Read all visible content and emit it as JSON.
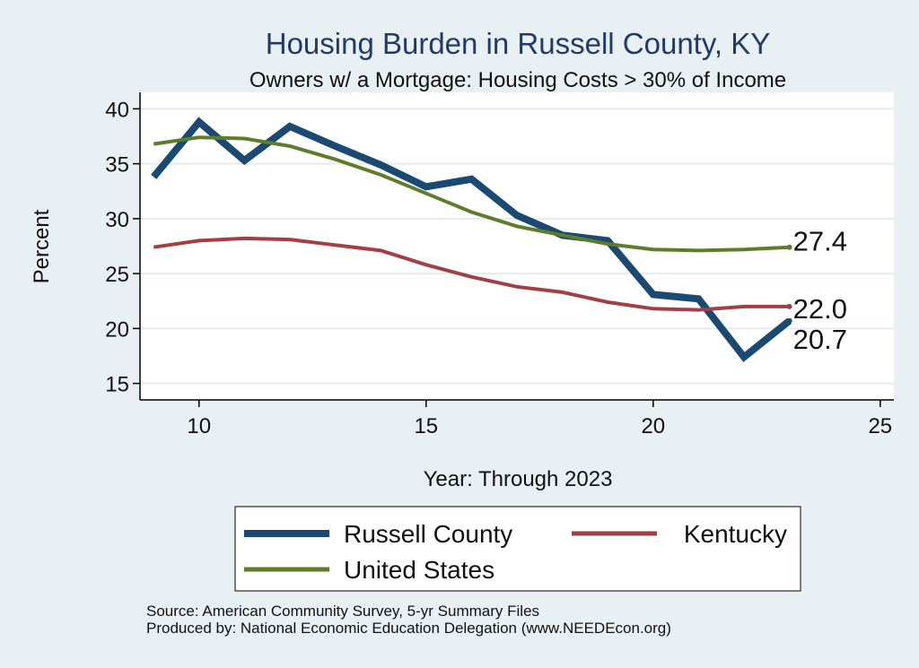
{
  "title": "Housing Burden in Russell County, KY",
  "subtitle": "Owners w/ a Mortgage: Housing Costs > 30% of Income",
  "notes": [
    "Source: American Community Survey, 5-yr Summary Files",
    "Produced by: National Economic Education Delegation (www.NEEDEcon.org)"
  ],
  "colors": {
    "background": "#e9f0f3",
    "plot_area": "#ffffff",
    "title": "#1f3a6b"
  },
  "chart_data": {
    "type": "line",
    "xlabel": "Year: Through 2023",
    "ylabel": "Percent",
    "xlim": [
      8.7,
      25.3
    ],
    "ylim": [
      13.5,
      41.5
    ],
    "xticks": [
      10,
      15,
      20,
      25
    ],
    "yticks": [
      15,
      20,
      25,
      30,
      35,
      40
    ],
    "grid": true,
    "legend_position": "bottom",
    "series": [
      {
        "name": "Russell County",
        "color": "#1a4a72",
        "x": [
          9,
          10,
          11,
          12,
          13,
          14,
          15,
          16,
          17,
          18,
          19,
          20,
          21,
          22,
          23
        ],
        "values": [
          33.8,
          38.8,
          35.3,
          38.4,
          36.6,
          34.9,
          32.9,
          33.6,
          30.3,
          28.5,
          28.0,
          23.1,
          22.7,
          17.4,
          20.7
        ],
        "end_label": "20.7"
      },
      {
        "name": "Kentucky",
        "color": "#a23f45",
        "x": [
          9,
          10,
          11,
          12,
          13,
          14,
          15,
          16,
          17,
          18,
          19,
          20,
          21,
          22,
          23
        ],
        "values": [
          27.4,
          28.0,
          28.2,
          28.1,
          27.6,
          27.1,
          25.8,
          24.7,
          23.8,
          23.3,
          22.4,
          21.8,
          21.7,
          22.0,
          22.0
        ],
        "end_label": "22.0"
      },
      {
        "name": "United States",
        "color": "#5e7d2b",
        "x": [
          9,
          10,
          11,
          12,
          13,
          14,
          15,
          16,
          17,
          18,
          19,
          20,
          21,
          22,
          23
        ],
        "values": [
          36.8,
          37.4,
          37.3,
          36.6,
          35.4,
          34.0,
          32.3,
          30.6,
          29.3,
          28.5,
          27.7,
          27.2,
          27.1,
          27.2,
          27.4
        ],
        "end_label": "27.4"
      }
    ]
  }
}
